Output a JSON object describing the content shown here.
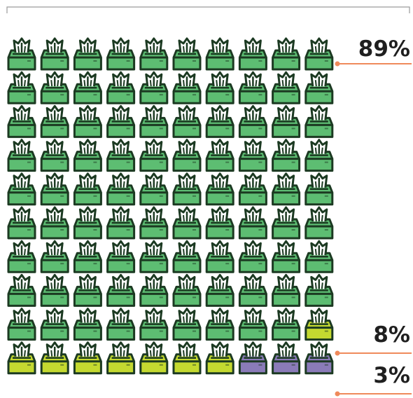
{
  "chart_data": {
    "type": "waffle",
    "total_units": 100,
    "columns": 10,
    "rows": 10,
    "icon": "tissue-box-icon",
    "series": [
      {
        "value": 89,
        "label": "89%",
        "color": "#5dbd72"
      },
      {
        "value": 8,
        "label": "8%",
        "color": "#c4d930"
      },
      {
        "value": 3,
        "label": "3%",
        "color": "#8a7bb8"
      }
    ],
    "outline_color": "#1c3a22",
    "annotation_line_color": "#ef8a5b",
    "top_bracket_color": "#9a9a9a"
  }
}
